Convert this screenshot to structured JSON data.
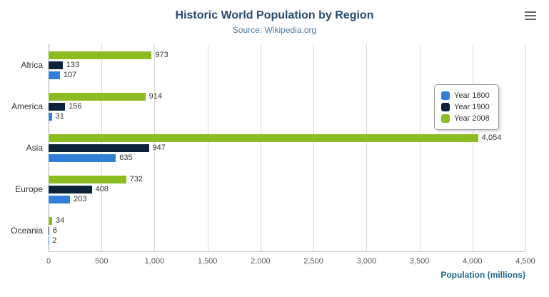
{
  "header": {
    "title": "Historic World Population by Region",
    "subtitle": "Source: Wikipedia.org"
  },
  "menu": {
    "icon": "hamburger-icon"
  },
  "chart_data": {
    "type": "bar",
    "orientation": "horizontal",
    "title": "Historic World Population by Region",
    "subtitle": "Source: Wikipedia.org",
    "categories": [
      "Africa",
      "America",
      "Asia",
      "Europe",
      "Oceania"
    ],
    "series": [
      {
        "name": "Year 1800",
        "color": "#2f7ed8",
        "values": [
          107,
          31,
          635,
          203,
          2
        ]
      },
      {
        "name": "Year 1900",
        "color": "#0d233a",
        "values": [
          133,
          156,
          947,
          408,
          6
        ]
      },
      {
        "name": "Year 2008",
        "color": "#8bbc21",
        "values": [
          973,
          914,
          4054,
          732,
          34
        ]
      }
    ],
    "display_order": [
      "Year 2008",
      "Year 1900",
      "Year 1800"
    ],
    "xlabel": "Population (millions)",
    "ylabel": "",
    "xlim": [
      0,
      4500
    ],
    "x_ticks": [
      0,
      500,
      1000,
      1500,
      2000,
      2500,
      3000,
      3500,
      4000,
      4500
    ],
    "grid": true,
    "legend_position": "right"
  }
}
